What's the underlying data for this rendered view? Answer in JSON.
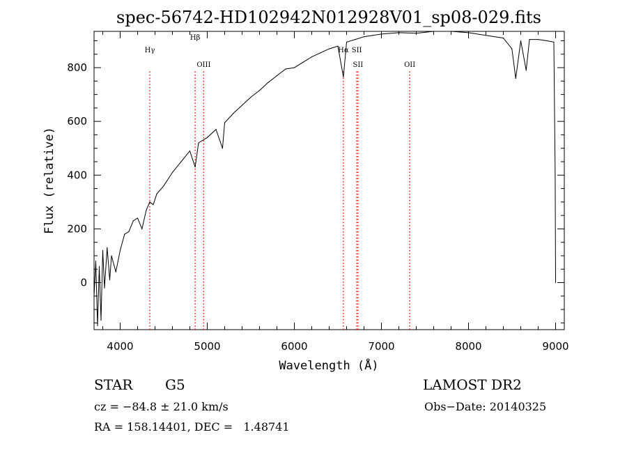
{
  "chart_data": {
    "type": "line",
    "title": "spec-56742-HD102942N012928V01_sp08-029.fits",
    "xlabel": "Wavelength (Å)",
    "ylabel": "Flux (relative)",
    "xlim": [
      3700,
      9100
    ],
    "ylim": [
      -175,
      935
    ],
    "xticks": [
      4000,
      5000,
      6000,
      7000,
      8000,
      9000
    ],
    "yticks": [
      0,
      200,
      400,
      600,
      800
    ],
    "grid": false,
    "series_color": "#000000",
    "line_marker_color": "#ff0000",
    "series": [
      {
        "x": [
          3700,
          3720,
          3740,
          3760,
          3780,
          3800,
          3820,
          3850,
          3880,
          3900,
          3950,
          4000,
          4050,
          4100,
          4150,
          4200,
          4250,
          4300,
          4340,
          4380,
          4420,
          4500,
          4600,
          4700,
          4800,
          4861,
          4900,
          5000,
          5100,
          5175,
          5200,
          5300,
          5400,
          5500,
          5600,
          5700,
          5800,
          5900,
          6000,
          6100,
          6200,
          6300,
          6400,
          6500,
          6563,
          6600,
          6700,
          6800,
          6900,
          7000,
          7200,
          7400,
          7600,
          7800,
          8000,
          8200,
          8400,
          8498,
          8542,
          8600,
          8662,
          8700,
          8800,
          8900,
          8980,
          8995,
          9000
        ],
        "y": [
          -50,
          80,
          -160,
          60,
          -140,
          120,
          -20,
          130,
          10,
          100,
          40,
          120,
          180,
          190,
          230,
          240,
          200,
          270,
          300,
          290,
          330,
          360,
          410,
          450,
          490,
          430,
          520,
          540,
          570,
          500,
          595,
          630,
          660,
          690,
          715,
          745,
          770,
          795,
          800,
          820,
          840,
          855,
          870,
          880,
          765,
          895,
          905,
          915,
          920,
          925,
          930,
          928,
          935,
          935,
          930,
          920,
          910,
          870,
          760,
          900,
          790,
          905,
          905,
          900,
          895,
          400,
          0
        ]
      }
    ],
    "line_markers": [
      {
        "label": "Hγ",
        "x": 4340,
        "color": "#ff0000"
      },
      {
        "label": "Hβ",
        "x": 4861,
        "color": "#ff0000"
      },
      {
        "label": "OIII",
        "x": 4959,
        "color": "#ff0000"
      },
      {
        "label": "Hα",
        "x": 6563,
        "color": "#ff0000"
      },
      {
        "label": "SII",
        "x": 6717,
        "color": "#ff0000"
      },
      {
        "label": "SII",
        "x": 6731,
        "color": "#ff0000"
      },
      {
        "label": "OII",
        "x": 7325,
        "color": "#ff0000"
      }
    ]
  },
  "info": {
    "class": "STAR",
    "subclass": "G5",
    "survey": "LAMOST DR2",
    "redshift": "cz = −84.8 ± 21.0 km/s",
    "obs_date": "Obs−Date: 20140325",
    "coords": "RA = 158.14401, DEC =   1.48741"
  }
}
